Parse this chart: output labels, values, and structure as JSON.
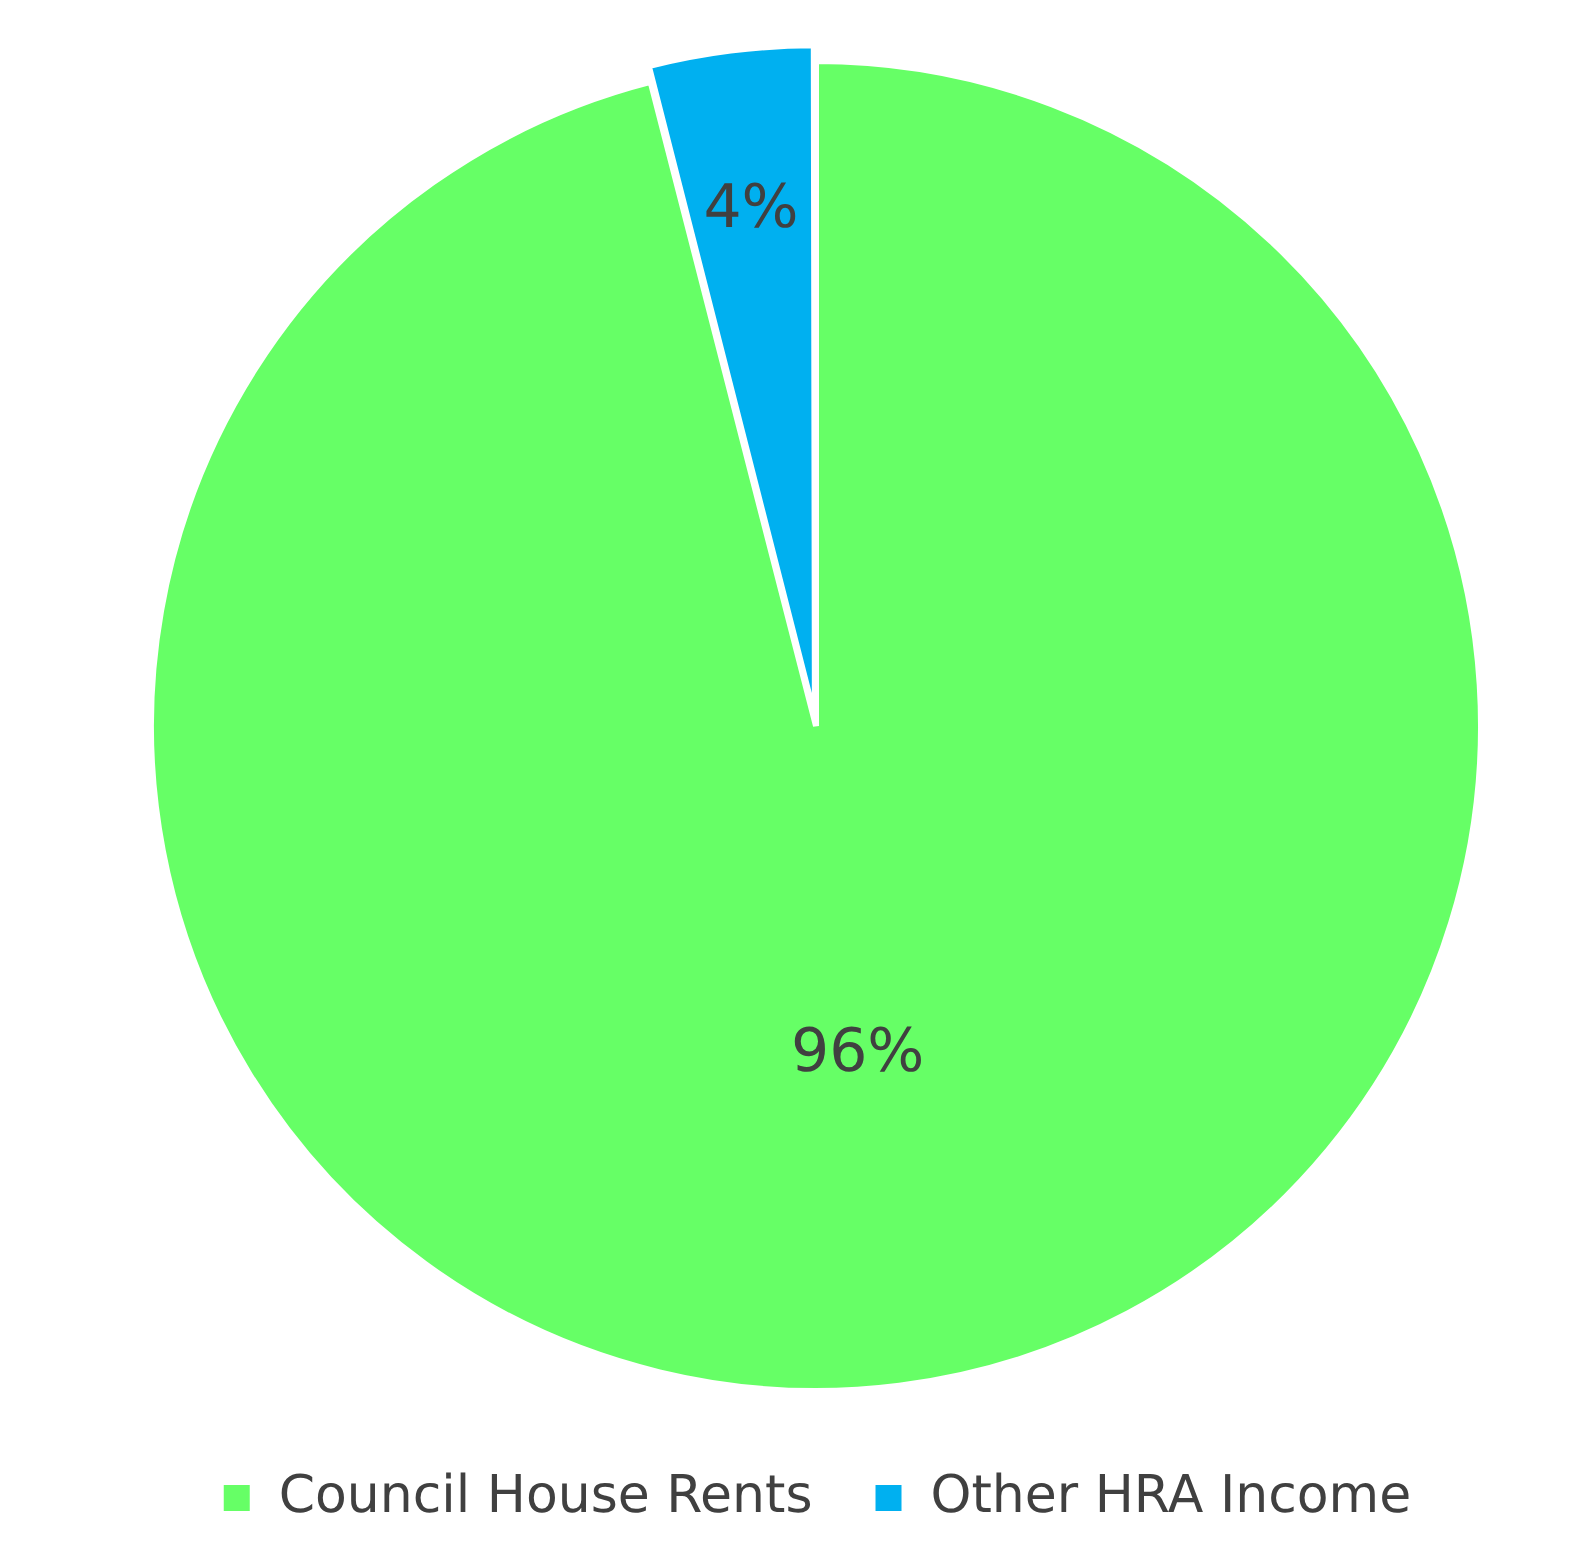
{
  "chart_data": {
    "type": "pie",
    "categories": [
      "Council House Rents",
      "Other HRA Income"
    ],
    "values": [
      96,
      4
    ],
    "colors": [
      "#66ff66",
      "#00b0f0"
    ],
    "value_labels": [
      "96%",
      "4%"
    ],
    "legend": "bottom"
  }
}
